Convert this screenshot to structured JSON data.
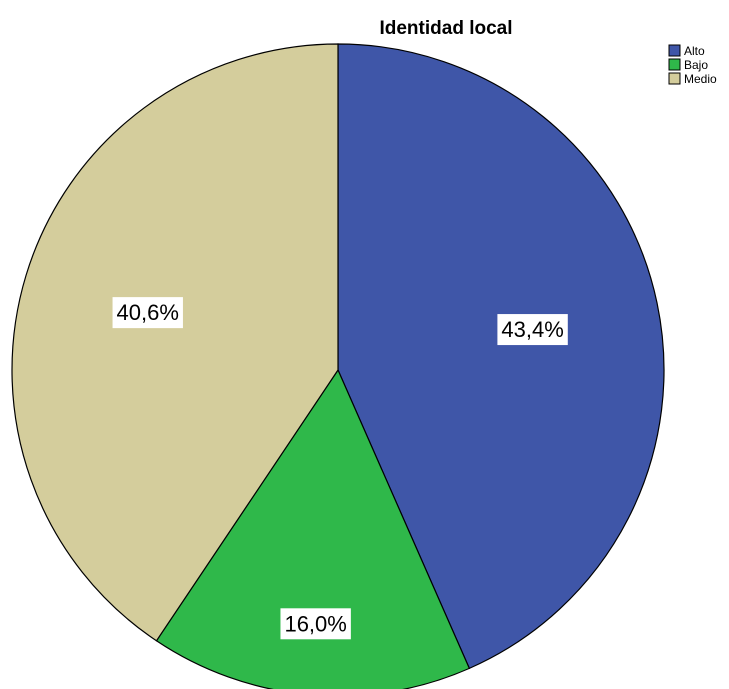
{
  "chart_data": {
    "type": "pie",
    "title": "Identidad local",
    "categories": [
      "Alto",
      "Bajo",
      "Medio"
    ],
    "values": [
      43.4,
      16.0,
      40.6
    ],
    "labels": [
      "43,4%",
      "16,0%",
      "40,6%"
    ],
    "colors": [
      "#3f56a8",
      "#2fb84a",
      "#d4cd9c"
    ],
    "legend_position": "top-right",
    "start": "12 o'clock",
    "direction": "clockwise"
  }
}
